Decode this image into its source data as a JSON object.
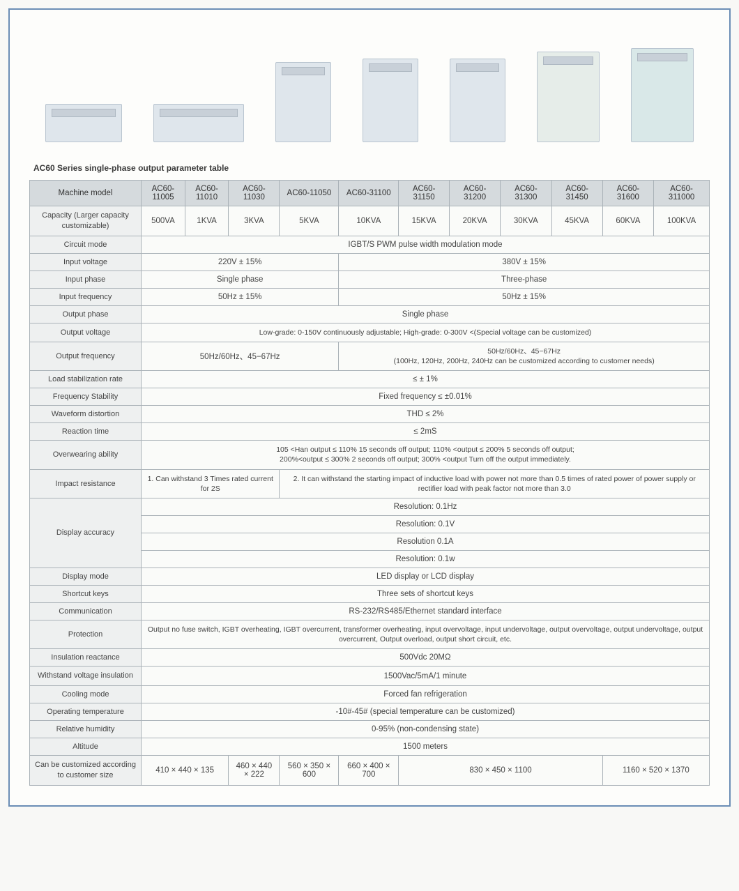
{
  "title": "AC60 Series single-phase output parameter table",
  "colors": {
    "page_border": "#6a8db5",
    "header_bg": "#d5dadd",
    "label_bg": "#eef0f0",
    "cell_border": "#aab2b8",
    "text": "#444444",
    "background": "#fdfdfb"
  },
  "typography": {
    "base_fontsize": 11.5,
    "label_fontsize": 11,
    "small_fontsize": 10.5
  },
  "models": [
    "AC60-11005",
    "AC60-11010",
    "AC60-11030",
    "AC60-11050",
    "AC60-31100",
    "AC60-31150",
    "AC60-31200",
    "AC60-31300",
    "AC60-31450",
    "AC60-31600",
    "AC60-311000"
  ],
  "rows": {
    "capacity": {
      "label": "Capacity\n(Larger capacity customizable)",
      "values": [
        "500VA",
        "1KVA",
        "3KVA",
        "5KVA",
        "10KVA",
        "15KVA",
        "20KVA",
        "30KVA",
        "45KVA",
        "60KVA",
        "100KVA"
      ]
    },
    "circuit_mode": {
      "label": "Circuit mode",
      "value": "IGBT/S PWM pulse width modulation mode"
    },
    "input_voltage": {
      "label": "Input voltage",
      "left": "220V ± 15%",
      "right": "380V ± 15%"
    },
    "input_phase": {
      "label": "Input phase",
      "left": "Single phase",
      "right": "Three-phase"
    },
    "input_frequency": {
      "label": "Input frequency",
      "left": "50Hz ± 15%",
      "right": "50Hz ± 15%"
    },
    "output_phase": {
      "label": "Output phase",
      "value": "Single phase"
    },
    "output_voltage": {
      "label": "Output voltage",
      "value": "Low-grade: 0-150V continuously adjustable; High-grade: 0-300V <(Special voltage can be customized)"
    },
    "output_frequency": {
      "label": "Output frequency",
      "left": "50Hz/60Hz、45−67Hz",
      "right_line1": "50Hz/60Hz、45−67Hz",
      "right_line2": "(100Hz, 120Hz, 200Hz, 240Hz can be customized according to customer needs)"
    },
    "load_stab": {
      "label": "Load stabilization rate",
      "value": "≤ ± 1%"
    },
    "freq_stab": {
      "label": "Frequency Stability",
      "value": "Fixed frequency ≤ ±0.01%"
    },
    "waveform": {
      "label": "Waveform distortion",
      "value": "THD ≤ 2%"
    },
    "reaction": {
      "label": "Reaction time",
      "value": "≤ 2mS"
    },
    "overwearing": {
      "label": "Overwearing ability",
      "line1": "105 <Han output ≤ 110% 15 seconds off output; 110% <output ≤ 200% 5 seconds off output;",
      "line2": "200%<output ≤ 300% 2 seconds off output; 300% <output Turn off the output immediately."
    },
    "impact": {
      "label": "Impact resistance",
      "left": "1. Can withstand 3 Times rated current for 2S",
      "right": "2. It can withstand the starting impact of inductive load with power not more than 0.5 times of rated power of power supply or rectifier load with peak factor not more than 3.0"
    },
    "display_accuracy": {
      "label": "Display accuracy",
      "lines": [
        "Resolution: 0.1Hz",
        "Resolution: 0.1V",
        "Resolution 0.1A",
        "Resolution: 0.1w"
      ]
    },
    "display_mode": {
      "label": "Display mode",
      "value": "LED display or LCD display"
    },
    "shortcut": {
      "label": "Shortcut keys",
      "value": "Three sets of shortcut keys"
    },
    "comm": {
      "label": "Communication",
      "value": "RS-232/RS485/Ethernet standard interface"
    },
    "protection": {
      "label": "Protection",
      "value": "Output no fuse switch, IGBT overheating, IGBT overcurrent, transformer overheating, input overvoltage, input undervoltage, output overvoltage, output undervoltage, output overcurrent, Output overload, output short circuit, etc."
    },
    "insulation_react": {
      "label": "Insulation reactance",
      "value": "500Vdc 20MΩ"
    },
    "withstand": {
      "label": "Withstand voltage insulation",
      "value": "1500Vac/5mA/1 minute"
    },
    "cooling": {
      "label": "Cooling mode",
      "value": "Forced fan refrigeration"
    },
    "temp": {
      "label": "Operating temperature",
      "value": "-10#-45# (special temperature can be customized)"
    },
    "humidity": {
      "label": "Relative humidity",
      "value": "0-95% (non-condensing state)"
    },
    "altitude": {
      "label": "Altitude",
      "value": "1500 meters"
    },
    "size": {
      "label": "Can be customized according to customer size",
      "v1": "410 × 440 × 135",
      "v2": "460 × 440 × 222",
      "v3": "560 × 350 × 600",
      "v4": "660 × 400 × 700",
      "v5": "830 × 450 × 1100",
      "v6": "1160 × 520 × 1370"
    }
  },
  "header_labels": {
    "machine_model": "Machine model"
  }
}
